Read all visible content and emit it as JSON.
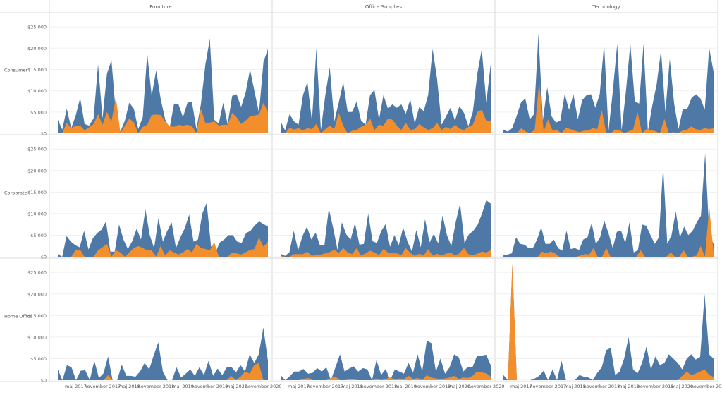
{
  "chart_data": {
    "type": "area",
    "title": "",
    "columns": [
      "Furniture",
      "Office Supplies",
      "Technology"
    ],
    "rows": [
      "Consumer",
      "Corporate",
      "Home Office"
    ],
    "y_ticks": [
      "$0",
      "$5.000",
      "$10.000",
      "$15.000",
      "$20.000",
      "$25.000"
    ],
    "ylim": [
      0,
      27000
    ],
    "x_tick_labels": [
      "maj 2017",
      "november 2017",
      "maj 2018",
      "november 2018",
      "maj 2019",
      "november 2019",
      "maj 2020",
      "november 2020"
    ],
    "x_tick_months": [
      4,
      10,
      16,
      22,
      28,
      34,
      40,
      46
    ],
    "x_month_range": [
      0,
      47
    ],
    "grid": true,
    "series_colors": {
      "total": "#4e79a7",
      "highlight": "#f28e2b"
    },
    "panels": [
      {
        "row": "Consumer",
        "column": "Furniture",
        "total": [
          3200,
          900,
          5800,
          1200,
          4200,
          8300,
          2200,
          1800,
          3500,
          16200,
          3500,
          14000,
          17200,
          4500,
          400,
          3000,
          7200,
          5800,
          1000,
          3800,
          18800,
          8800,
          14800,
          8200,
          3300,
          1200,
          7000,
          6800,
          3800,
          7200,
          7400,
          1000,
          6800,
          16000,
          22200,
          3200,
          2300,
          7200,
          2100,
          8800,
          9200,
          6200,
          9500,
          15000,
          9800,
          4800,
          16800,
          19800
        ],
        "highlight": [
          0,
          0,
          2500,
          1200,
          1800,
          1800,
          700,
          1400,
          2200,
          4500,
          2000,
          5000,
          2800,
          8500,
          0,
          1800,
          3500,
          2600,
          0,
          1500,
          2000,
          4300,
          4400,
          4300,
          2800,
          1700,
          1500,
          2000,
          1800,
          2000,
          1700,
          0,
          5800,
          2500,
          2500,
          2800,
          1800,
          2000,
          2000,
          4800,
          3800,
          2200,
          3000,
          4000,
          4200,
          4400,
          7200,
          5000
        ]
      },
      {
        "row": "Consumer",
        "column": "Office Supplies",
        "total": [
          2800,
          700,
          4500,
          2800,
          2000,
          9000,
          12000,
          2800,
          20000,
          800,
          9000,
          15500,
          2800,
          7200,
          12000,
          5000,
          5000,
          7500,
          3000,
          2000,
          9000,
          10200,
          3200,
          9000,
          5800,
          6800,
          6000,
          6800,
          4600,
          8000,
          2300,
          6200,
          5200,
          9000,
          19800,
          12800,
          2000,
          4000,
          6000,
          3000,
          6400,
          4800,
          1700,
          5000,
          14000,
          19800,
          7200,
          16300
        ],
        "highlight": [
          0,
          0,
          1300,
          900,
          1200,
          700,
          1200,
          1000,
          2200,
          0,
          1000,
          1800,
          1000,
          4800,
          1800,
          0,
          600,
          800,
          1500,
          2000,
          3500,
          800,
          2000,
          1800,
          3500,
          3200,
          1800,
          800,
          2500,
          800,
          1000,
          2200,
          1400,
          800,
          1200,
          2500,
          800,
          1500,
          1000,
          2000,
          1100,
          800,
          1500,
          2000,
          5000,
          5500,
          3000,
          2800
        ]
      },
      {
        "row": "Consumer",
        "column": "Technology",
        "total": [
          900,
          400,
          1200,
          4000,
          7200,
          8200,
          3300,
          4500,
          23400,
          3000,
          10800,
          4000,
          2500,
          3000,
          9200,
          5500,
          9200,
          3300,
          7800,
          9000,
          9200,
          6000,
          9200,
          21000,
          500,
          10000,
          21000,
          700,
          10000,
          21000,
          7500,
          7000,
          21000,
          500,
          6500,
          11500,
          19500,
          5000,
          17500,
          7000,
          1000,
          5800,
          5800,
          8400,
          9200,
          8200,
          5600,
          20000,
          14500
        ],
        "highlight": [
          0,
          0,
          0,
          0,
          1200,
          400,
          0,
          900,
          12000,
          500,
          3300,
          600,
          800,
          0,
          1300,
          1000,
          600,
          300,
          600,
          700,
          1200,
          1000,
          5500,
          0,
          0,
          900,
          800,
          0,
          500,
          900,
          5000,
          0,
          1000,
          800,
          500,
          0,
          3400,
          0,
          300,
          0,
          600,
          800,
          1600,
          1000,
          800,
          1200,
          1000,
          1200
        ]
      },
      {
        "row": "Corporate",
        "column": "Furniture",
        "total": [
          600,
          0,
          4800,
          3500,
          2700,
          2200,
          6000,
          1700,
          4300,
          5500,
          6300,
          8200,
          1200,
          1200,
          7500,
          4000,
          1800,
          3600,
          6500,
          4000,
          11000,
          5000,
          2000,
          9000,
          3500,
          6000,
          8000,
          2000,
          4500,
          6600,
          9800,
          3500,
          4000,
          10000,
          12500,
          2400,
          1000,
          3300,
          4000,
          5000,
          5000,
          3500,
          3200,
          5500,
          6000,
          7300,
          8200,
          7600,
          7000
        ],
        "highlight": [
          0,
          0,
          0,
          0,
          1600,
          1600,
          0,
          0,
          0,
          1500,
          2200,
          3000,
          0,
          1500,
          1000,
          0,
          1000,
          2000,
          2500,
          2000,
          1500,
          1500,
          0,
          2500,
          300,
          1500,
          1000,
          500,
          1000,
          1800,
          1000,
          3000,
          2000,
          1800,
          1500,
          3400,
          0,
          0,
          0,
          1000,
          800,
          500,
          1000,
          1600,
          1800,
          4500,
          2300,
          3500
        ]
      },
      {
        "row": "Corporate",
        "column": "Office Supplies",
        "total": [
          700,
          200,
          1000,
          6000,
          1500,
          4800,
          7000,
          4000,
          5600,
          2600,
          2700,
          11200,
          6700,
          1600,
          8000,
          5200,
          4000,
          7800,
          2800,
          3000,
          10000,
          3600,
          3200,
          6000,
          7600,
          2300,
          5000,
          2700,
          6800,
          3500,
          1200,
          6200,
          2200,
          8700,
          3300,
          5300,
          3100,
          9600,
          5000,
          2500,
          8000,
          12300,
          3200,
          5200,
          6000,
          7400,
          10000,
          13100,
          12300
        ],
        "highlight": [
          200,
          0,
          0,
          600,
          600,
          600,
          1200,
          200,
          500,
          500,
          800,
          1100,
          1600,
          900,
          2000,
          1000,
          600,
          2000,
          300,
          800,
          1400,
          1000,
          400,
          1800,
          1000,
          800,
          800,
          400,
          2000,
          900,
          200,
          700,
          300,
          1800,
          300,
          700,
          300,
          700,
          1000,
          300,
          800,
          2000,
          600,
          400,
          700,
          1200,
          1000,
          1500
        ]
      },
      {
        "row": "Corporate",
        "column": "Technology",
        "total": [
          400,
          500,
          800,
          4500,
          3000,
          2800,
          2000,
          2000,
          4000,
          6800,
          3000,
          3000,
          4000,
          2000,
          1400,
          6000,
          1800,
          2000,
          1600,
          4000,
          4500,
          7800,
          3000,
          4500,
          8400,
          5500,
          2000,
          5800,
          6000,
          3200,
          8000,
          1000,
          1500,
          7500,
          7200,
          5000,
          3000,
          4500,
          21000,
          3000,
          5000,
          10500,
          4500,
          7000,
          5000,
          6000,
          8000,
          9500,
          24000,
          5000,
          3000
        ],
        "highlight": [
          0,
          0,
          0,
          0,
          0,
          0,
          0,
          0,
          0,
          1200,
          800,
          1200,
          800,
          0,
          0,
          0,
          0,
          0,
          300,
          600,
          500,
          2000,
          0,
          0,
          2000,
          0,
          0,
          0,
          0,
          0,
          0,
          0,
          1500,
          0,
          0,
          0,
          0,
          0,
          0,
          1000,
          0,
          0,
          1500,
          0,
          0,
          300,
          2500,
          0,
          11500,
          1000
        ]
      },
      {
        "row": "Home Office",
        "column": "Furniture",
        "total": [
          2500,
          0,
          3500,
          3000,
          0,
          2200,
          2300,
          0,
          4500,
          500,
          1600,
          5500,
          0,
          0,
          3600,
          1000,
          1000,
          800,
          2000,
          4000,
          2500,
          5800,
          8800,
          2000,
          0,
          0,
          3000,
          600,
          1500,
          2500,
          1000,
          3000,
          1200,
          4500,
          1000,
          2700,
          1200,
          3000,
          3100,
          1800,
          3500,
          2000,
          6000,
          4000,
          6000,
          12200,
          4500
        ],
        "highlight": [
          0,
          0,
          0,
          0,
          0,
          0,
          0,
          0,
          0,
          0,
          0,
          1200,
          0,
          0,
          0,
          0,
          0,
          0,
          0,
          0,
          0,
          0,
          0,
          0,
          0,
          0,
          0,
          0,
          0,
          0,
          0,
          0,
          0,
          0,
          0,
          0,
          0,
          0,
          1000,
          0,
          800,
          2000,
          1500,
          3500,
          4000,
          0,
          0
        ]
      },
      {
        "row": "Home Office",
        "column": "Office Supplies",
        "total": [
          1200,
          0,
          900,
          2000,
          2000,
          2600,
          1500,
          1700,
          2800,
          2000,
          3000,
          0,
          3000,
          6000,
          2000,
          2700,
          3200,
          2000,
          2800,
          2500,
          0,
          4700,
          1200,
          2600,
          0,
          2500,
          2000,
          1500,
          4000,
          1800,
          6000,
          2000,
          9200,
          8600,
          2000,
          5000,
          1500,
          3000,
          6000,
          5300,
          2000,
          3100,
          3000,
          5700,
          5700,
          5900,
          3500
        ],
        "highlight": [
          0,
          0,
          0,
          0,
          0,
          300,
          500,
          0,
          0,
          0,
          0,
          500,
          800,
          0,
          0,
          200,
          200,
          0,
          0,
          0,
          0,
          400,
          0,
          300,
          600,
          200,
          400,
          300,
          1000,
          300,
          500,
          0,
          1200,
          600,
          400,
          300,
          400,
          600,
          1000,
          300,
          600,
          500,
          1000,
          2000,
          1800,
          1600,
          800
        ]
      },
      {
        "row": "Home Office",
        "column": "Technology",
        "total": [
          1200,
          0,
          27500,
          0,
          0,
          0,
          0,
          400,
          1000,
          2200,
          0,
          2500,
          0,
          4500,
          0,
          0,
          0,
          1200,
          800,
          600,
          0,
          1700,
          3000,
          7000,
          7500,
          1200,
          2000,
          5000,
          10000,
          2500,
          1600,
          4000,
          7800,
          2500,
          5500,
          3500,
          4000,
          6000,
          5000,
          4000,
          2500,
          5000,
          6000,
          4800,
          5400,
          20000,
          6000,
          5000
        ],
        "highlight": [
          0,
          0,
          27000,
          0,
          0,
          0,
          0,
          0,
          0,
          0,
          0,
          0,
          0,
          0,
          0,
          0,
          0,
          0,
          0,
          0,
          0,
          0,
          0,
          0,
          0,
          0,
          0,
          0,
          0,
          0,
          0,
          0,
          0,
          0,
          0,
          0,
          0,
          0,
          0,
          0,
          1000,
          2000,
          1200,
          1500,
          2000,
          2500,
          1200,
          800
        ]
      }
    ]
  }
}
